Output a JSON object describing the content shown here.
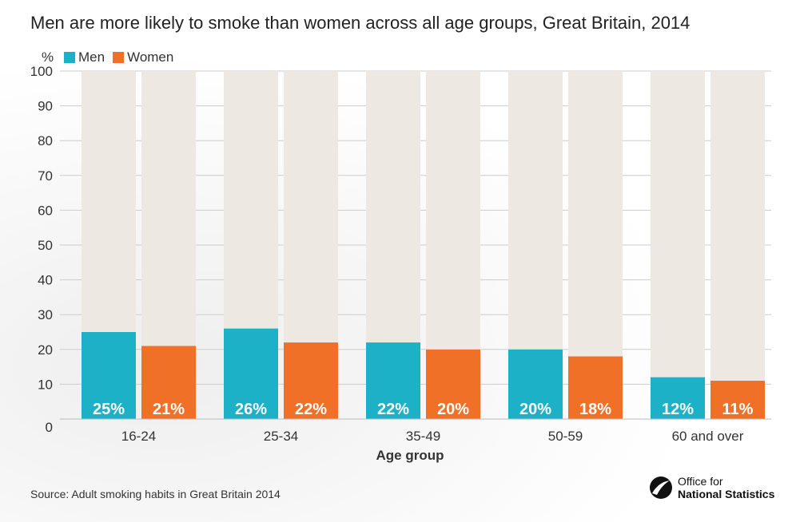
{
  "title": "Men are more likely to smoke than women across all age groups, Great Britain, 2014",
  "unit_label": "%",
  "source": "Source: Adult smoking habits in Great Britain 2014",
  "logo": {
    "line1": "Office for",
    "line2": "National Statistics"
  },
  "colors": {
    "men": "#1cb1c6",
    "women": "#f07027",
    "background_bar": "#ede9e2",
    "grid": "#cccccc"
  },
  "chart_data": {
    "type": "bar",
    "title": "Men are more likely to smoke than women across all age groups, Great Britain, 2014",
    "xlabel": "Age group",
    "ylabel": "%",
    "ylim": [
      0,
      100
    ],
    "yticks": [
      0,
      10,
      20,
      30,
      40,
      50,
      60,
      70,
      80,
      90,
      100
    ],
    "grid": true,
    "legend_position": "top-left",
    "categories": [
      "16-24",
      "25-34",
      "35-49",
      "50-59",
      "60 and over"
    ],
    "series": [
      {
        "name": "Men",
        "values": [
          25,
          26,
          22,
          20,
          12
        ],
        "labels": [
          "25%",
          "26%",
          "22%",
          "20%",
          "12%"
        ]
      },
      {
        "name": "Women",
        "values": [
          21,
          22,
          20,
          18,
          11
        ],
        "labels": [
          "21%",
          "22%",
          "20%",
          "18%",
          "11%"
        ]
      }
    ]
  }
}
